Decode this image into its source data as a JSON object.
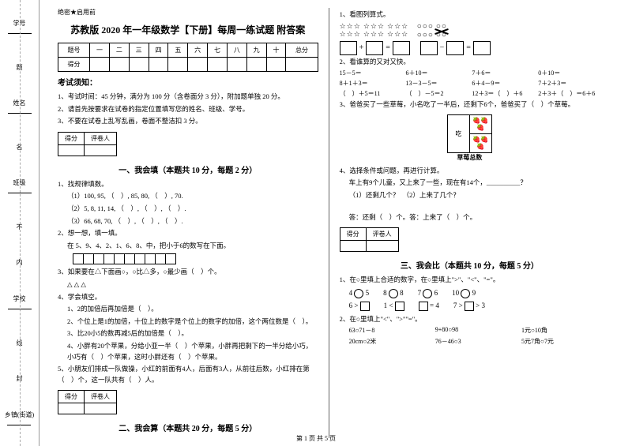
{
  "binding": {
    "items": [
      "学号",
      "姓名",
      "班级",
      "学校",
      "乡镇(街道)"
    ],
    "marks": [
      "题",
      "名",
      "不",
      "内",
      "线",
      "封"
    ]
  },
  "header_flag": "绝密★启用前",
  "title": "苏教版 2020 年一年级数学【下册】每周一练试题 附答案",
  "score_table": {
    "row1": [
      "题号",
      "一",
      "二",
      "三",
      "四",
      "五",
      "六",
      "七",
      "八",
      "九",
      "十",
      "总分"
    ],
    "row2_label": "得分"
  },
  "notice_title": "考试须知：",
  "notices": [
    "1、考试时间：45 分钟，满分为 100 分（含卷面分 3 分），附加题单独 20 分。",
    "2、请首先按要求在试卷的指定位置填写您的姓名、班级、学号。",
    "3、不要在试卷上乱写乱画，卷面不整洁扣 3 分。"
  ],
  "sub_table": {
    "c1": "得分",
    "c2": "评卷人"
  },
  "s1": {
    "title": "一、我会填（本题共 10 分，每题 2 分）",
    "q1": "1、找规律填数。",
    "q1a": "（1）100, 95, （　）, 85, 80, （　）, 70.",
    "q1b": "（2）5, 8, 11, 14, （　）, （　）, （　）.",
    "q1c": "（3）66, 68, 70, （　）, （　）, （　）.",
    "q2": "2、想一想，填一填。",
    "q2a": "在 5、9、4、2、1、6、8、中，把小于6的数写在下面。",
    "q3": "3、如果要在△下面画○，○比△多，○最少画（　）个。",
    "q3a": "△ △ △",
    "q4": "4、学会填空。",
    "q4a": "1、2的加倍后再加倍是（　）。",
    "q4b": "2、个位上是1的加倍，十位上的数字是个位上的数字的加倍，这个两位数是（　）。",
    "q4c": "3、比20小5的数再减5后的加倍是（　）。",
    "q4d": "4、小胖有20个苹果，分给小亚一半（　）个苹果，小胖再把剩下的一半分给小巧，小巧有（　）个苹果，这时小胖还有（　）个苹果。",
    "q5": "5、小朋友们排成一队做操，小红的前面有4人，后面有3人，从前往后数，小红排在第（　）个，这一队共有（　）人。"
  },
  "s2_title": "二、我会算（本题共 20 分，每题 5 分）",
  "right": {
    "q1": "1、看图列算式。",
    "eq_star": "=",
    "eq_circle": "=",
    "q2": "2、看谁算的又对又快。",
    "calc": [
      "15－5＝",
      "6＋10＝",
      "7＋6＝",
      "0＋10＝",
      "8＋1＋3＝",
      "13－3－5＝",
      "6＋4－9＝",
      "7＋2＋3＝",
      "（　）＋5＝11",
      "（　）－5＝2",
      "12＋3＝（　）＋6",
      "2＋3＋（　）＝6＋6"
    ],
    "q3": "3、爸爸买了一些草莓，小名吃了一半后，还剩下6个，爸爸买了（　）个草莓。",
    "sb_eat": "吃",
    "sb_label": "草莓总数",
    "q4": "4、选择条件或问题，再进行计算。",
    "q4a": "车上有9个儿童，又上来了一些，现在有14个，__________？",
    "q4b": "（1）还剩几个？　（2）上来了几个？",
    "q4ans": "答：还剩（　）个。答：上来了（　）个。"
  },
  "s3": {
    "title": "三、我会比（本题共 10 分，每题 5 分）",
    "q1": "1、在○里填上合适的数字，在○里填上\">\"、\"<\"、\"=\"。",
    "rows": [
      [
        "4",
        "5",
        "8",
        "8",
        "7",
        "6",
        "10",
        "9"
      ],
      [
        "6 >",
        "1 <",
        "",
        "= 4",
        "7 >",
        "",
        " > 3"
      ]
    ],
    "q2": "2、在○里填上\"<\"、\">\"\"=\"。",
    "money": [
      "63○71－8",
      "9+80○98",
      "1元○10角",
      "20cm○2米",
      "76－46○3",
      "5元7角○7元"
    ]
  },
  "footer": "第 1 页 共 5 页"
}
